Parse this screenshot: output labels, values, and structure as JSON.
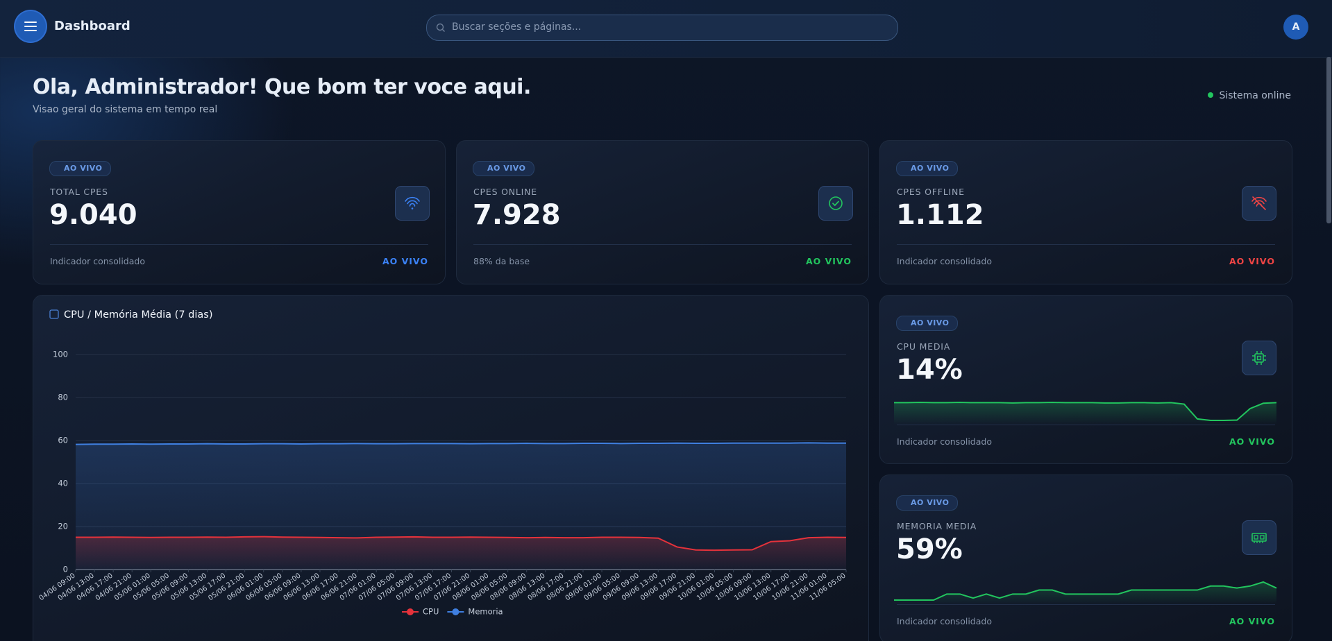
{
  "header": {
    "title": "Dashboard",
    "search_placeholder": "Buscar seções e páginas...",
    "avatar": "A"
  },
  "greeting": {
    "title": "Ola, Administrador! Que bom ter voce aqui.",
    "subtitle": "Visao geral do sistema em tempo real",
    "status": "Sistema online"
  },
  "stat_cards": [
    {
      "badge": "AO VIVO",
      "label": "TOTAL CPES",
      "value": "9.040",
      "footer": "Indicador consolidado",
      "live": "AO VIVO",
      "color": "#3b82f6"
    },
    {
      "badge": "AO VIVO",
      "label": "CPES ONLINE",
      "value": "7.928",
      "footer": "88% da base",
      "live": "AO VIVO",
      "color": "#22c55e"
    },
    {
      "badge": "AO VIVO",
      "label": "CPES OFFLINE",
      "value": "1.112",
      "footer": "Indicador consolidado",
      "live": "AO VIVO",
      "color": "#ef4444"
    }
  ],
  "metric_cards": [
    {
      "badge": "AO VIVO",
      "label": "CPU MEDIA",
      "value": "14%",
      "footer": "Indicador consolidado",
      "live": "AO VIVO",
      "color": "#22c55e",
      "sparkline": [
        15,
        15,
        15.1,
        15,
        15,
        15.1,
        15,
        15,
        15,
        14.9,
        15,
        15,
        15.1,
        15,
        15,
        15,
        14.9,
        14.9,
        15,
        15,
        14.9,
        15,
        14.5,
        9.5,
        9,
        9,
        9.1,
        13,
        14.8,
        15
      ]
    },
    {
      "badge": "AO VIVO",
      "label": "MEMORIA MEDIA",
      "value": "59%",
      "footer": "Indicador consolidado",
      "live": "AO VIVO",
      "color": "#22c55e",
      "sparkline": [
        58.3,
        58.3,
        58.3,
        58.3,
        58.6,
        58.6,
        58.4,
        58.6,
        58.4,
        58.6,
        58.6,
        58.8,
        58.8,
        58.6,
        58.6,
        58.6,
        58.6,
        58.6,
        58.8,
        58.8,
        58.8,
        58.8,
        58.8,
        58.8,
        59,
        59,
        58.9,
        59,
        59.2,
        58.9
      ]
    }
  ],
  "chart": {
    "type": "line",
    "title": "CPU / Memória Média (7 dias)",
    "categories": [
      "04/06 09:00",
      "04/06 13:00",
      "04/06 17:00",
      "04/06 21:00",
      "05/06 01:00",
      "05/06 05:00",
      "05/06 09:00",
      "05/06 13:00",
      "05/06 17:00",
      "05/06 21:00",
      "06/06 01:00",
      "06/06 05:00",
      "06/06 09:00",
      "06/06 13:00",
      "06/06 17:00",
      "06/06 21:00",
      "07/06 01:00",
      "07/06 05:00",
      "07/06 09:00",
      "07/06 13:00",
      "07/06 17:00",
      "07/06 21:00",
      "08/06 01:00",
      "08/06 05:00",
      "08/06 09:00",
      "08/06 13:00",
      "08/06 17:00",
      "08/06 21:00",
      "09/06 01:00",
      "09/06 05:00",
      "09/06 09:00",
      "09/06 13:00",
      "09/06 17:00",
      "09/06 21:00",
      "10/06 01:00",
      "10/06 05:00",
      "10/06 09:00",
      "10/06 13:00",
      "10/06 17:00",
      "10/06 21:00",
      "11/06 01:00",
      "11/06 05:00"
    ],
    "series": [
      {
        "name": "CPU",
        "color": "#e5323b",
        "values": [
          15,
          15,
          15.1,
          15,
          14.9,
          15,
          15,
          15.1,
          15,
          15.2,
          15.3,
          15.1,
          15,
          14.9,
          14.8,
          14.7,
          15,
          15.1,
          15.2,
          15,
          15,
          15.1,
          15,
          14.9,
          14.8,
          14.9,
          14.8,
          14.8,
          15,
          15,
          14.9,
          14.6,
          10.5,
          9.1,
          9,
          9.1,
          9.2,
          13,
          13.4,
          14.8,
          15,
          14.9
        ]
      },
      {
        "name": "Memoria",
        "color": "#3f7fe0",
        "values": [
          58.2,
          58.3,
          58.3,
          58.4,
          58.3,
          58.4,
          58.4,
          58.5,
          58.4,
          58.4,
          58.5,
          58.5,
          58.4,
          58.5,
          58.5,
          58.6,
          58.5,
          58.5,
          58.6,
          58.6,
          58.6,
          58.5,
          58.6,
          58.6,
          58.7,
          58.6,
          58.6,
          58.7,
          58.7,
          58.6,
          58.7,
          58.7,
          58.8,
          58.7,
          58.7,
          58.8,
          58.8,
          58.8,
          58.8,
          58.9,
          58.8,
          58.8
        ]
      }
    ],
    "ylim": [
      0,
      100
    ],
    "yticks": [
      0,
      20,
      40,
      60,
      80,
      100
    ],
    "grid": true
  }
}
